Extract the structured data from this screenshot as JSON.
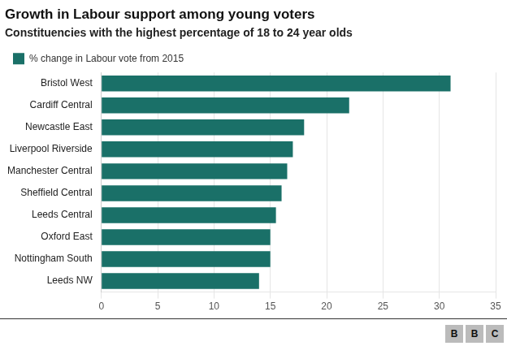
{
  "chart_data": {
    "type": "bar",
    "orientation": "horizontal",
    "title": "Growth in Labour support among young voters",
    "subtitle": "Constituencies with the highest percentage of 18 to 24 year olds",
    "categories": [
      "Leeds NW",
      "Nottingham South",
      "Oxford East",
      "Leeds Central",
      "Sheffield Central",
      "Manchester Central",
      "Liverpool Riverside",
      "Newcastle East",
      "Cardiff Central",
      "Bristol West"
    ],
    "series": [
      {
        "name": "% change in Labour vote from 2015",
        "color": "#1a7068",
        "values": [
          14,
          15,
          15,
          15.5,
          16,
          16.5,
          17,
          18,
          22,
          31
        ]
      }
    ],
    "xlim": [
      0,
      35
    ],
    "xticks": [
      0,
      5,
      10,
      15,
      20,
      25,
      30,
      35
    ],
    "grid": true,
    "legend": "upper left",
    "annotations": [
      "B",
      "B",
      "C"
    ]
  }
}
